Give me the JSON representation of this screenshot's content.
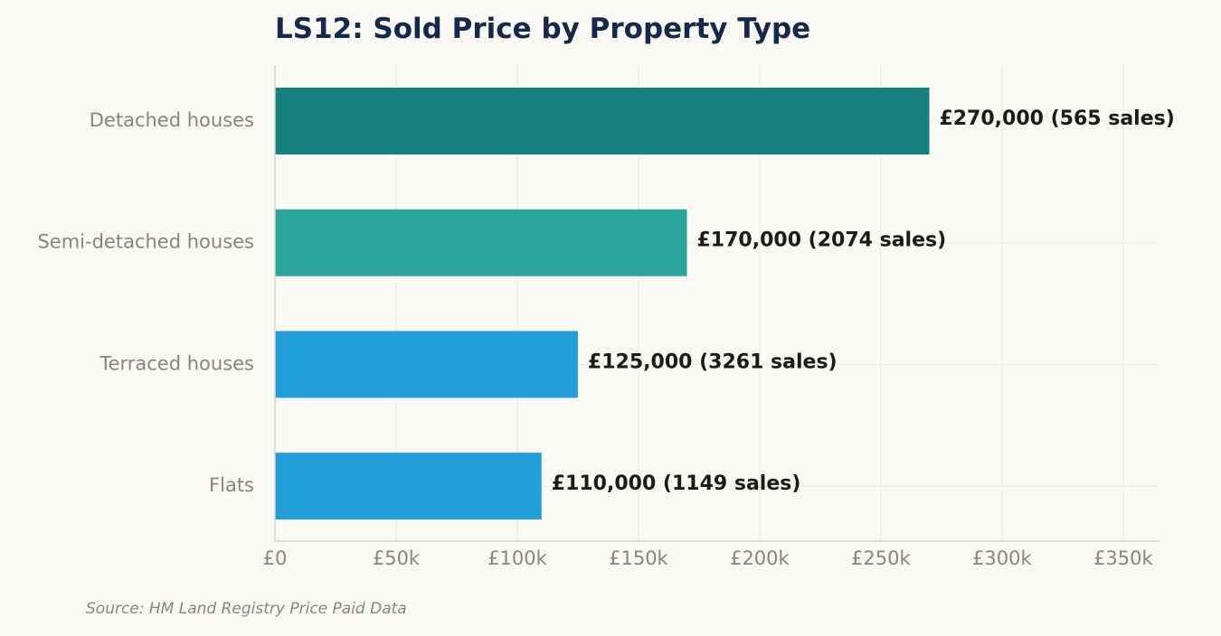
{
  "chart_data": {
    "type": "bar",
    "orientation": "horizontal",
    "title": "LS12: Sold Price by Property Type",
    "categories": [
      "Detached houses",
      "Semi-detached houses",
      "Terraced houses",
      "Flats"
    ],
    "values": [
      270000,
      170000,
      125000,
      110000
    ],
    "value_labels": [
      "£270,000  (565 sales)",
      "£170,000  (2074 sales)",
      "£125,000  (3261 sales)",
      "£110,000  (1149 sales)"
    ],
    "bar_colors": [
      "#178180",
      "#2ba59c",
      "#229fd9",
      "#229fd9"
    ],
    "x_ticks": [
      0,
      50000,
      100000,
      150000,
      200000,
      250000,
      300000,
      350000
    ],
    "x_tick_labels": [
      "£0",
      "£50k",
      "£100k",
      "£150k",
      "£200k",
      "£250k",
      "£300k",
      "£350k"
    ],
    "xlim": [
      0,
      365000
    ],
    "xlabel": "",
    "ylabel": "",
    "grid": true,
    "source": "Source: HM Land Registry Price Paid Data"
  }
}
